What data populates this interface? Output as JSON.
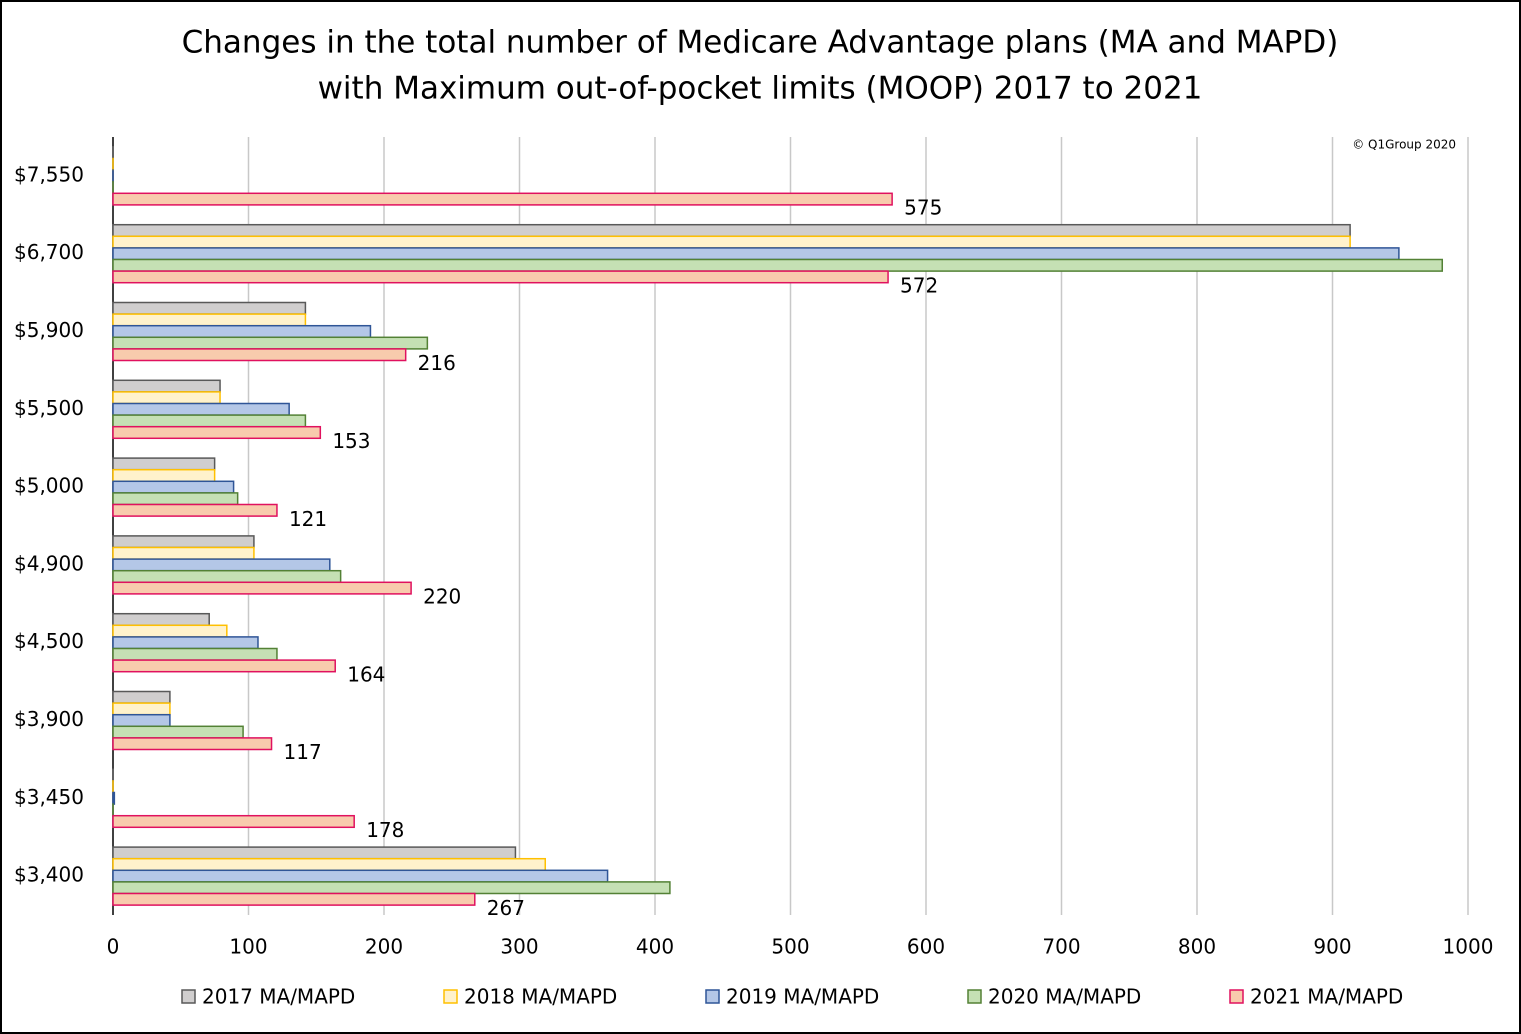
{
  "chart_data": {
    "type": "hbar",
    "title": "Changes in the total number of Medicare Advantage plans (MA and MAPD)",
    "subtitle": "with Maximum out-of-pocket limits (MOOP) 2017 to 2021",
    "annotation": "© Q1Group 2020",
    "categories": [
      "$7,550",
      "$6,700",
      "$5,900",
      "$5,500",
      "$5,000",
      "$4,900",
      "$4,500",
      "$3,900",
      "$3,450",
      "$3,400"
    ],
    "series": [
      {
        "name": "2017 MA/MAPD",
        "color": "#d0cece",
        "edge": "#595959",
        "values": [
          0,
          913,
          142,
          79,
          75,
          104,
          71,
          42,
          0,
          297
        ]
      },
      {
        "name": "2018 MA/MAPD",
        "color": "#fff2cc",
        "edge": "#ffc000",
        "values": [
          0,
          913,
          142,
          79,
          75,
          104,
          84,
          42,
          0,
          319
        ]
      },
      {
        "name": "2019 MA/MAPD",
        "color": "#b4c7e7",
        "edge": "#2f5597",
        "values": [
          0,
          949,
          190,
          130,
          89,
          160,
          107,
          42,
          1,
          365
        ]
      },
      {
        "name": "2020 MA/MAPD",
        "color": "#c5e0b4",
        "edge": "#538135",
        "values": [
          0,
          981,
          232,
          142,
          92,
          168,
          121,
          96,
          0,
          411
        ]
      },
      {
        "name": "2021 MA/MAPD",
        "color": "#f8cbad",
        "edge": "#e0115f",
        "values": [
          575,
          572,
          216,
          153,
          121,
          220,
          164,
          117,
          178,
          267
        ],
        "labeled": true
      }
    ],
    "xlim": [
      0,
      1000
    ],
    "xticks": [
      0,
      100,
      200,
      300,
      400,
      500,
      600,
      700,
      800,
      900,
      1000
    ],
    "grid": true,
    "legend": "bottom"
  }
}
